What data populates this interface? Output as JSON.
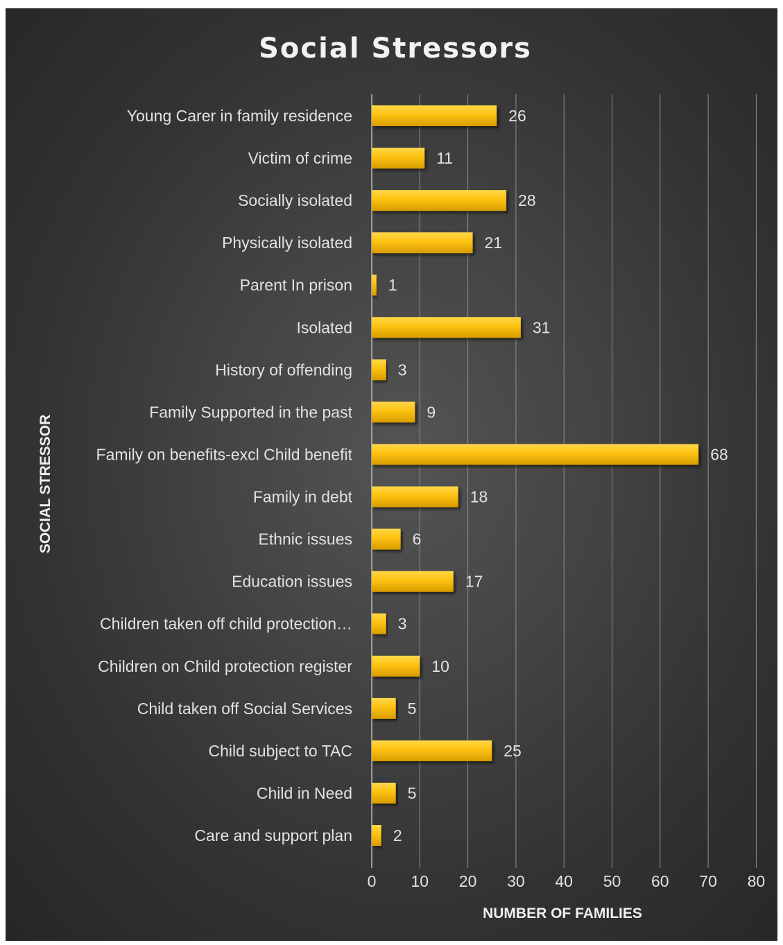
{
  "chart_data": {
    "type": "bar",
    "orientation": "horizontal",
    "title": "Social Stressors",
    "xlabel": "NUMBER OF FAMILIES",
    "ylabel": "SOCIAL STRESSOR",
    "xlim": [
      0,
      80
    ],
    "xticks": [
      0,
      10,
      20,
      30,
      40,
      50,
      60,
      70,
      80
    ],
    "grid": true,
    "bar_color": "#fdc10e",
    "bar_color_light": "#ffd84a",
    "bar_color_dark": "#d89c00",
    "categories": [
      "Young Carer in family residence",
      "Victim of crime",
      "Socially isolated",
      "Physically isolated",
      "Parent In prison",
      "Isolated",
      "History of offending",
      "Family Supported in the past",
      "Family on benefits-excl Child benefit",
      "Family in debt",
      "Ethnic issues",
      "Education issues",
      "Children taken off child protection…",
      "Children on Child protection register",
      "Child taken off  Social Services",
      "Child subject to TAC",
      "Child in Need",
      "Care and support plan"
    ],
    "values": [
      26,
      11,
      28,
      21,
      1,
      31,
      3,
      9,
      68,
      18,
      6,
      17,
      3,
      10,
      5,
      25,
      5,
      2
    ]
  }
}
